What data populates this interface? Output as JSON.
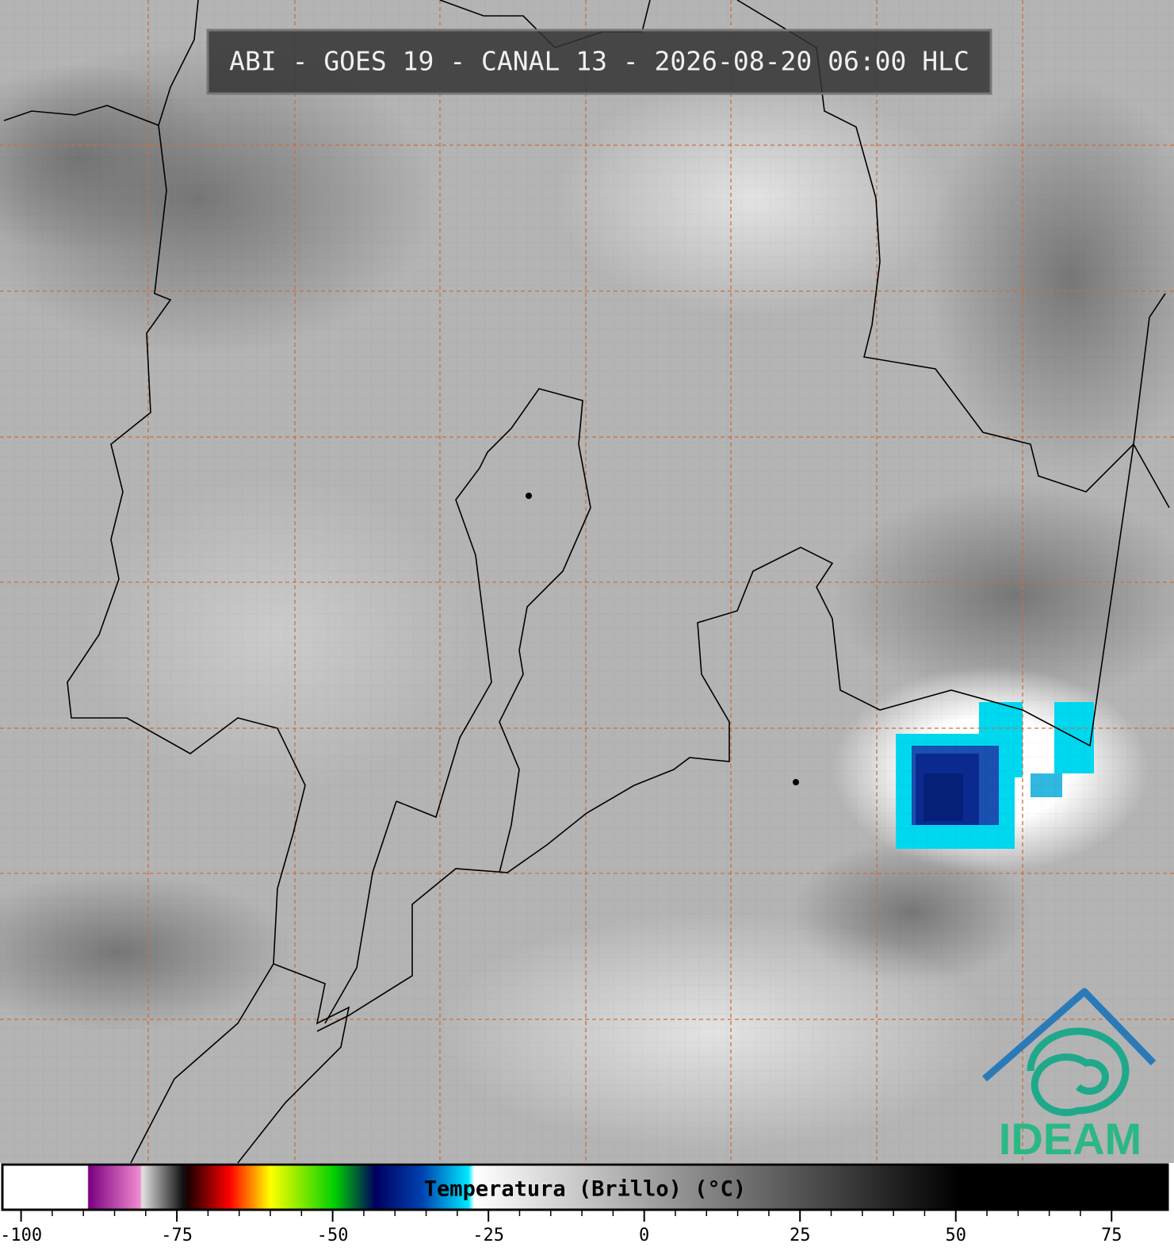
{
  "title": "ABI - GOES 19 - CANAL 13 - 2026-08-20 06:00 HLC",
  "colorbar": {
    "label": "Temperatura (Brillo) (°C)",
    "lim": [
      -103,
      84
    ],
    "ticks": [
      -100,
      -75,
      -50,
      -25,
      0,
      25,
      50,
      75
    ]
  },
  "logo": {
    "text": "IDEAM"
  }
}
